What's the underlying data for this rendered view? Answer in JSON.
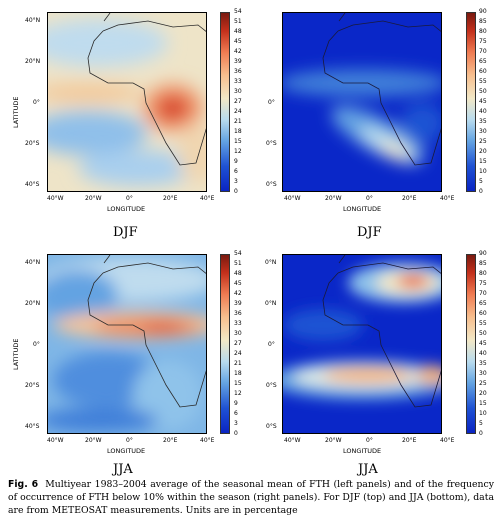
{
  "panels": [
    {
      "name": "djf-fth",
      "y_ticks": [
        "40°N",
        "20°N",
        "0°",
        "20°S",
        "40°S"
      ],
      "x_ticks": [
        "40°W",
        "20°W",
        "0°",
        "20°E",
        "40°E"
      ],
      "xlabel": "LONGITUDE",
      "ylabel": "LATITUDE",
      "colorbar_ticks": [
        "54",
        "51",
        "48",
        "45",
        "42",
        "39",
        "36",
        "33",
        "30",
        "27",
        "24",
        "21",
        "18",
        "15",
        "12",
        "9",
        "6",
        "3",
        "0"
      ],
      "season_label": "DJF"
    },
    {
      "name": "djf-freq",
      "y_ticks": [
        "",
        "",
        "0°",
        "0°S",
        "0°S"
      ],
      "x_ticks": [
        "40°W",
        "20°W",
        "0°",
        "20°E",
        "40°E"
      ],
      "xlabel": "LONGITUDE",
      "ylabel": "",
      "colorbar_ticks": [
        "90",
        "85",
        "80",
        "75",
        "70",
        "65",
        "60",
        "55",
        "50",
        "45",
        "40",
        "35",
        "30",
        "25",
        "20",
        "15",
        "10",
        "5",
        "0"
      ],
      "season_label": "DJF"
    },
    {
      "name": "jja-fth",
      "y_ticks": [
        "40°N",
        "20°N",
        "0°",
        "20°S",
        "40°S"
      ],
      "x_ticks": [
        "40°W",
        "20°W",
        "0°",
        "20°E",
        "40°E"
      ],
      "xlabel": "LONGITUDE",
      "ylabel": "LATITUDE",
      "colorbar_ticks": [
        "54",
        "51",
        "48",
        "45",
        "42",
        "39",
        "36",
        "33",
        "30",
        "27",
        "24",
        "21",
        "18",
        "15",
        "12",
        "9",
        "6",
        "3",
        "0"
      ],
      "season_label": "JJA"
    },
    {
      "name": "jja-freq",
      "y_ticks": [
        "0°N",
        "0°N",
        "0°",
        "0°S",
        "0°S"
      ],
      "x_ticks": [
        "40°W",
        "20°W",
        "0°",
        "20°E",
        "40°E"
      ],
      "xlabel": "LONGITUDE",
      "ylabel": "",
      "colorbar_ticks": [
        "90",
        "85",
        "80",
        "75",
        "70",
        "65",
        "60",
        "55",
        "50",
        "45",
        "40",
        "35",
        "30",
        "25",
        "20",
        "15",
        "10",
        "5",
        "0"
      ],
      "season_label": "JJA"
    }
  ],
  "colormap": [
    "#7a1a10",
    "#c3301c",
    "#e7593b",
    "#f3875f",
    "#f7b184",
    "#f6d2a6",
    "#f2e8c7",
    "#dbe8e6",
    "#b8dbee",
    "#8fc3ea",
    "#64a3e2",
    "#3f7fd9",
    "#1f52d3",
    "#0a24c3"
  ],
  "caption": {
    "label": "Fig. 6",
    "text": "Multiyear 1983–2004 average of the seasonal mean of FTH (left panels) and of the frequency of occurrence of FTH below 10% within the season (right panels). For DJF (top) and JJA (bottom), data are from METEOSAT measurements. Units are in percentage"
  }
}
